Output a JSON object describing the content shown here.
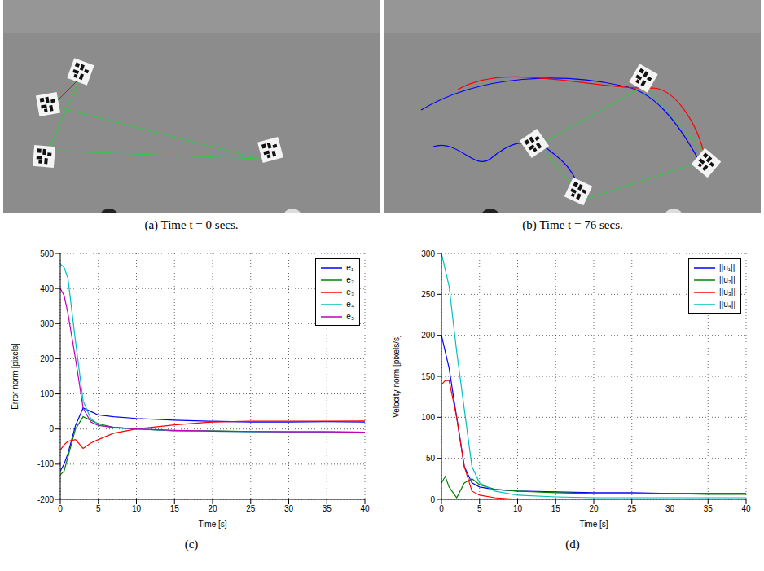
{
  "images": [
    {
      "caption": "(a) Time t = 0 secs."
    },
    {
      "caption": "(b) Time t = 76 secs."
    }
  ],
  "chart_data": [
    {
      "type": "line",
      "title": "(c)",
      "x_label": "Time [s]",
      "y_label": "Error norm [pixels]",
      "x": [
        0,
        0.5,
        1,
        2,
        3,
        4,
        5,
        7,
        10,
        15,
        20,
        25,
        30,
        35,
        40
      ],
      "xlim": [
        0,
        40
      ],
      "xticks": [
        0,
        5,
        10,
        15,
        20,
        25,
        30,
        35,
        40
      ],
      "ylim": [
        -200,
        500
      ],
      "yticks": [
        -200,
        -100,
        0,
        100,
        200,
        300,
        400,
        500
      ],
      "grid": true,
      "legend": "upper right",
      "series": [
        {
          "name": "e₁",
          "color": "#0000ff",
          "values": [
            -120,
            -100,
            -70,
            10,
            60,
            50,
            40,
            35,
            30,
            25,
            22,
            20,
            20,
            21,
            20
          ]
        },
        {
          "name": "e₂",
          "color": "#008000",
          "values": [
            -130,
            -120,
            -80,
            0,
            35,
            25,
            15,
            5,
            0,
            -5,
            -5,
            -7,
            -8,
            -8,
            -9
          ]
        },
        {
          "name": "e₃",
          "color": "#ff0000",
          "values": [
            -60,
            -45,
            -35,
            -30,
            -55,
            -40,
            -30,
            -12,
            0,
            12,
            20,
            22,
            22,
            22,
            23
          ]
        },
        {
          "name": "e₄",
          "color": "#00bfbf",
          "values": [
            470,
            460,
            430,
            250,
            80,
            30,
            12,
            3,
            0,
            -5,
            -6,
            -8,
            -8,
            -9,
            -10
          ]
        },
        {
          "name": "e₅",
          "color": "#bf00bf",
          "values": [
            400,
            380,
            330,
            200,
            60,
            20,
            10,
            5,
            0,
            -4,
            -6,
            -7,
            -8,
            -8,
            -9
          ]
        }
      ]
    },
    {
      "type": "line",
      "title": "(d)",
      "x_label": "Time [s]",
      "y_label": "Velocity norm [pixels/s]",
      "x": [
        0,
        0.5,
        1,
        2,
        3,
        4,
        5,
        7,
        10,
        15,
        20,
        25,
        30,
        35,
        40
      ],
      "xlim": [
        0,
        40
      ],
      "xticks": [
        0,
        5,
        10,
        15,
        20,
        25,
        30,
        35,
        40
      ],
      "ylim": [
        0,
        300
      ],
      "yticks": [
        0,
        50,
        100,
        150,
        200,
        250,
        300
      ],
      "grid": true,
      "legend": "upper right",
      "series": [
        {
          "name": "||u₁||",
          "color": "#0000ff",
          "values": [
            200,
            180,
            160,
            100,
            40,
            20,
            15,
            12,
            10,
            9,
            8,
            8,
            7,
            7,
            7
          ]
        },
        {
          "name": "||u₂||",
          "color": "#008000",
          "values": [
            20,
            28,
            15,
            2,
            20,
            25,
            18,
            12,
            10,
            8,
            7,
            7,
            7,
            6,
            6
          ]
        },
        {
          "name": "||u₃||",
          "color": "#ff0000",
          "values": [
            140,
            145,
            145,
            100,
            40,
            10,
            5,
            2,
            0,
            0,
            0,
            0,
            0,
            0,
            0
          ]
        },
        {
          "name": "||u₄||",
          "color": "#00bfbf",
          "values": [
            300,
            280,
            260,
            180,
            110,
            40,
            20,
            10,
            5,
            3,
            2,
            2,
            2,
            2,
            2
          ]
        }
      ]
    }
  ]
}
